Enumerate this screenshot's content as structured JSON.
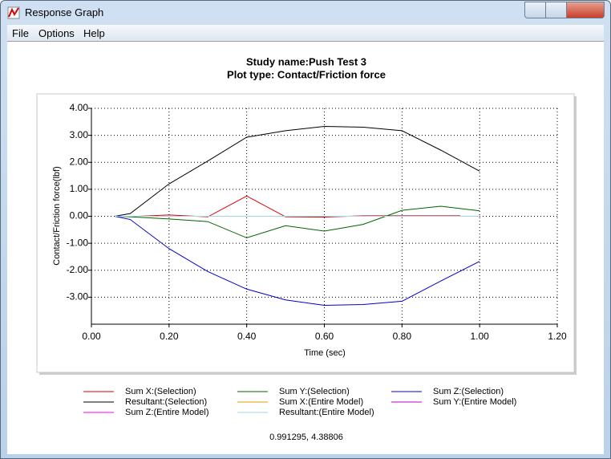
{
  "window": {
    "title": "Response Graph"
  },
  "menu": [
    "File",
    "Options",
    "Help"
  ],
  "status": "0.991295, 4.38806",
  "chart_data": {
    "type": "line",
    "title": "Study name:Push Test 3",
    "subtitle": "Plot type: Contact/Friction force",
    "x_label": "Time (sec)",
    "y_label": "Contact/Friction force(lbf)",
    "xlim": [
      0,
      1.2
    ],
    "ylim": [
      -4,
      4
    ],
    "xticks": [
      {
        "value": 0,
        "label": "0.00"
      },
      {
        "value": 0.2,
        "label": "0.20"
      },
      {
        "value": 0.4,
        "label": "0.40"
      },
      {
        "value": 0.6,
        "label": "0.60"
      },
      {
        "value": 0.8,
        "label": "0.80"
      },
      {
        "value": 1,
        "label": "1.00"
      },
      {
        "value": 1.2,
        "label": "1.20"
      }
    ],
    "yticks": [
      {
        "value": 4,
        "label": "4.00"
      },
      {
        "value": 3,
        "label": "3.00"
      },
      {
        "value": 2,
        "label": "2.00"
      },
      {
        "value": 1,
        "label": "1.00"
      },
      {
        "value": 0,
        "label": "0.00"
      },
      {
        "value": -1,
        "label": "-1.00"
      },
      {
        "value": -2,
        "label": "-2.00"
      },
      {
        "value": -3,
        "label": "-3.00"
      }
    ],
    "grid": true,
    "series": [
      {
        "name": "Sum X:(Selection)",
        "color": "#e00000",
        "x": [
          0.12,
          0.2,
          0.3,
          0.4,
          0.5,
          0.6,
          0.7,
          0.8,
          0.9,
          0.95
        ],
        "values": [
          0,
          0.05,
          -0.02,
          0.75,
          -0.02,
          -0.03,
          0.02,
          0.02,
          0.02,
          0.02
        ]
      },
      {
        "name": "Sum Y:(Selection)",
        "color": "#006400",
        "x": [
          0.06,
          0.1,
          0.2,
          0.3,
          0.4,
          0.5,
          0.6,
          0.7,
          0.8,
          0.9,
          1.0
        ],
        "values": [
          0,
          -0.02,
          -0.1,
          -0.2,
          -0.8,
          -0.35,
          -0.55,
          -0.3,
          0.22,
          0.37,
          0.2
        ]
      },
      {
        "name": "Sum Z:(Selection)",
        "color": "#0000cc",
        "x": [
          0.06,
          0.1,
          0.2,
          0.3,
          0.4,
          0.5,
          0.6,
          0.7,
          0.8,
          0.9,
          1.0
        ],
        "values": [
          0,
          -0.12,
          -1.2,
          -2.05,
          -2.7,
          -3.1,
          -3.3,
          -3.27,
          -3.15,
          -2.4,
          -1.67
        ]
      },
      {
        "name": "Resultant:(Selection)",
        "color": "#000000",
        "x": [
          0.06,
          0.1,
          0.2,
          0.3,
          0.4,
          0.5,
          0.6,
          0.7,
          0.8,
          0.9,
          1.0
        ],
        "values": [
          0,
          0.1,
          1.2,
          2.05,
          2.93,
          3.17,
          3.33,
          3.3,
          3.17,
          2.45,
          1.67
        ]
      },
      {
        "name": "Sum X:(Entire Model)",
        "color": "#e0a000",
        "x": [
          0.06,
          1.0
        ],
        "values": [
          0,
          0
        ]
      },
      {
        "name": "Sum Y:(Entire Model)",
        "color": "#c000c0",
        "x": [
          0.06,
          1.0
        ],
        "values": [
          0,
          0
        ]
      },
      {
        "name": "Sum Z:(Entire Model)",
        "color": "#ff00ff",
        "x": [
          0.06,
          1.0
        ],
        "values": [
          0,
          0
        ]
      },
      {
        "name": "Resultant:(Entire Model)",
        "color": "#9fd8e4",
        "x": [
          0.06,
          1.0
        ],
        "values": [
          0,
          0
        ]
      }
    ]
  }
}
